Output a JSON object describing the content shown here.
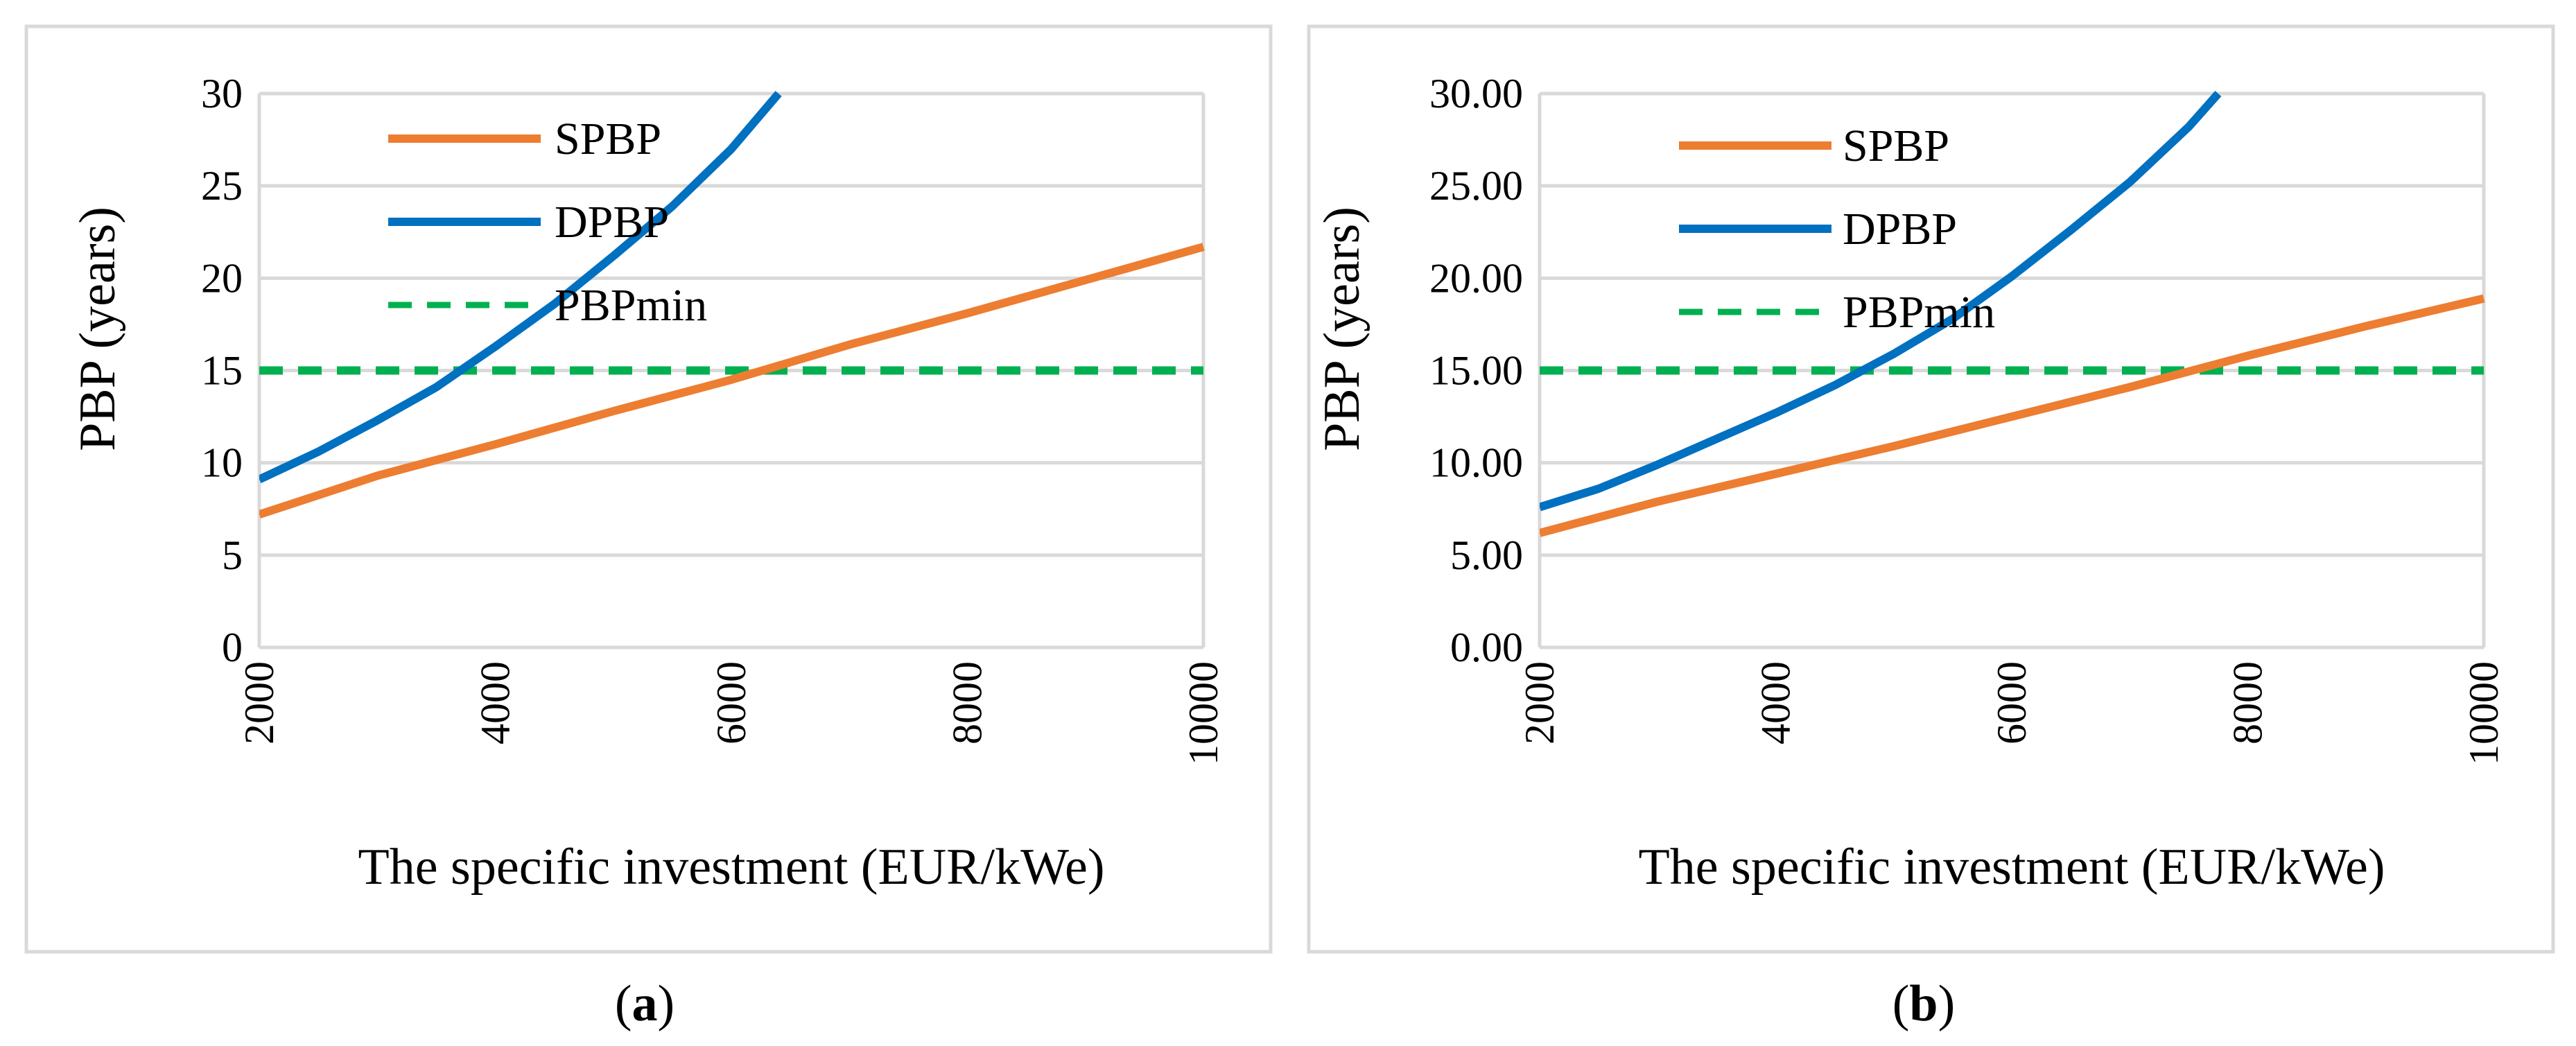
{
  "chart_data": [
    {
      "type": "line",
      "caption": {
        "open": "(",
        "label": "a",
        "close": ")"
      },
      "xlabel": "The specific investment (EUR/kWe)",
      "ylabel": "PBP (years)",
      "xlim": [
        2000,
        10000
      ],
      "ylim": [
        0,
        30
      ],
      "x_ticks": [
        "2000",
        "4000",
        "6000",
        "8000",
        "10000"
      ],
      "y_ticks": [
        "0",
        "5",
        "10",
        "15",
        "20",
        "25",
        "30"
      ],
      "grid": true,
      "legend": "top-left",
      "series": [
        {
          "name": "SPBP",
          "color": "#ed7d31",
          "style": "solid",
          "points": [
            [
              2000,
              7.2
            ],
            [
              3000,
              9.3
            ],
            [
              4000,
              11.0
            ],
            [
              5000,
              12.8
            ],
            [
              6000,
              14.5
            ],
            [
              7000,
              16.4
            ],
            [
              8000,
              18.1
            ],
            [
              9000,
              19.9
            ],
            [
              10000,
              21.7
            ]
          ]
        },
        {
          "name": "DPBP",
          "color": "#0070c0",
          "style": "solid",
          "points": [
            [
              2000,
              9.1
            ],
            [
              2500,
              10.6
            ],
            [
              3000,
              12.3
            ],
            [
              3500,
              14.1
            ],
            [
              4000,
              16.3
            ],
            [
              4500,
              18.6
            ],
            [
              5000,
              21.2
            ],
            [
              5500,
              23.9
            ],
            [
              6000,
              27.0
            ],
            [
              6400,
              30.0
            ]
          ]
        },
        {
          "name": "PBPmin",
          "color": "#00b050",
          "style": "dashed",
          "points": [
            [
              2000,
              15
            ],
            [
              10000,
              15
            ]
          ]
        }
      ]
    },
    {
      "type": "line",
      "caption": {
        "open": "(",
        "label": "b",
        "close": ")"
      },
      "xlabel": "The specific investment (EUR/kWe)",
      "ylabel": "PBP (years)",
      "xlim": [
        2000,
        10000
      ],
      "ylim": [
        0,
        30
      ],
      "x_ticks": [
        "2000",
        "4000",
        "6000",
        "8000",
        "10000"
      ],
      "y_ticks": [
        "0.00",
        "5.00",
        "10.00",
        "15.00",
        "20.00",
        "25.00",
        "30.00"
      ],
      "grid": true,
      "legend": "top-left",
      "series": [
        {
          "name": "SPBP",
          "color": "#ed7d31",
          "style": "solid",
          "points": [
            [
              2000,
              6.2
            ],
            [
              3000,
              7.9
            ],
            [
              4000,
              9.4
            ],
            [
              5000,
              10.9
            ],
            [
              6000,
              12.5
            ],
            [
              7000,
              14.1
            ],
            [
              8000,
              15.8
            ],
            [
              9000,
              17.4
            ],
            [
              10000,
              18.9
            ]
          ]
        },
        {
          "name": "DPBP",
          "color": "#0070c0",
          "style": "solid",
          "points": [
            [
              2000,
              7.6
            ],
            [
              2500,
              8.6
            ],
            [
              3000,
              9.9
            ],
            [
              3500,
              11.3
            ],
            [
              4000,
              12.7
            ],
            [
              4500,
              14.2
            ],
            [
              5000,
              15.9
            ],
            [
              5500,
              17.8
            ],
            [
              6000,
              20.1
            ],
            [
              6500,
              22.6
            ],
            [
              7000,
              25.2
            ],
            [
              7500,
              28.2
            ],
            [
              7750,
              30.0
            ]
          ]
        },
        {
          "name": "PBPmin",
          "color": "#00b050",
          "style": "dashed",
          "points": [
            [
              2000,
              15
            ],
            [
              10000,
              15
            ]
          ]
        }
      ]
    }
  ]
}
